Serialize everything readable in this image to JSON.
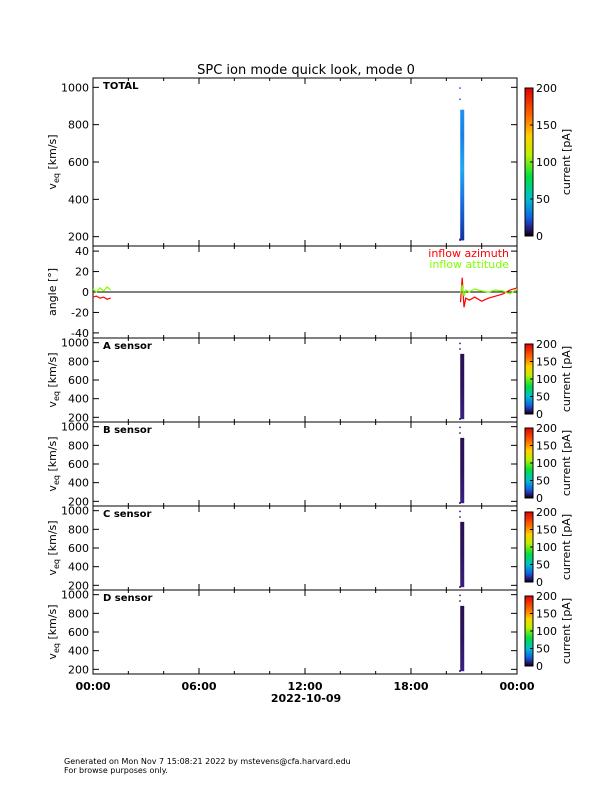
{
  "title": "SPC ion mode quick look, mode 0",
  "x_date": "2022-10-09",
  "x_ticks": [
    "00:00",
    "06:00",
    "12:00",
    "18:00",
    "00:00"
  ],
  "footer": {
    "line1": "Generated on Mon Nov  7 15:08:21 2022 by mstevens@cfa.harvard.edu",
    "line2": "For browse purposes only."
  },
  "vel_ylabel": "v",
  "vel_ylabel_sub": "eq",
  "vel_ylabel_unit": " [km/s]",
  "angle_ylabel": "angle [°]",
  "colorbar_label": "current [pA]",
  "legend": {
    "azimuth": "inflow azimuth",
    "attitude": "inflow attitude"
  },
  "colors": {
    "azimuth": "#ff0000",
    "attitude": "#80ff00"
  },
  "chart_data": [
    {
      "type": "heatmap",
      "panel": "TOTAL",
      "xlim_hours": [
        0,
        24
      ],
      "ylim": [
        150,
        1050
      ],
      "yticks": [
        200,
        400,
        600,
        800,
        1000
      ],
      "colorbar": {
        "range": [
          0,
          200
        ],
        "ticks": [
          0,
          50,
          100,
          150,
          200
        ],
        "colormap": "rainbow"
      },
      "data_column": {
        "x_hours": 20.9,
        "y_range": [
          180,
          880
        ],
        "current_pA": [
          20,
          25
        ]
      }
    },
    {
      "type": "line",
      "panel": "angle",
      "xlim_hours": [
        0,
        24
      ],
      "ylim": [
        -45,
        45
      ],
      "yticks": [
        -40,
        -20,
        0,
        20,
        40
      ],
      "series": [
        {
          "name": "inflow azimuth",
          "color": "#ff0000",
          "x": [
            0.0,
            0.2,
            0.4,
            0.6,
            0.8,
            1.0,
            20.8,
            20.9,
            21.0,
            21.1,
            21.3,
            21.6,
            22.0,
            22.4,
            22.8,
            23.2,
            23.6,
            24.0
          ],
          "y": [
            -5,
            -4,
            -6,
            -5,
            -7,
            -6,
            -10,
            14,
            -15,
            -6,
            -8,
            -5,
            -9,
            -6,
            -4,
            -2,
            2,
            4
          ]
        },
        {
          "name": "inflow attitude",
          "color": "#80ff00",
          "x": [
            0.0,
            0.2,
            0.4,
            0.6,
            0.8,
            1.0,
            20.8,
            20.9,
            21.0,
            21.1,
            21.3,
            21.6,
            22.0,
            22.4,
            22.8,
            23.2,
            23.6,
            24.0
          ],
          "y": [
            3,
            0,
            4,
            1,
            5,
            2,
            -2,
            7,
            -4,
            2,
            0,
            3,
            1,
            0,
            2,
            1,
            -2,
            3
          ]
        }
      ]
    },
    {
      "type": "heatmap",
      "panel": "A sensor",
      "xlim_hours": [
        0,
        24
      ],
      "ylim": [
        150,
        1050
      ],
      "yticks": [
        200,
        400,
        600,
        800,
        1000
      ],
      "colorbar": {
        "range": [
          0,
          200
        ],
        "ticks": [
          0,
          50,
          100,
          150,
          200
        ],
        "colormap": "rainbow"
      },
      "data_column": {
        "x_hours": 20.9,
        "y_range": [
          180,
          880
        ],
        "current_pA": [
          3,
          8
        ]
      }
    },
    {
      "type": "heatmap",
      "panel": "B sensor",
      "xlim_hours": [
        0,
        24
      ],
      "ylim": [
        150,
        1050
      ],
      "yticks": [
        200,
        400,
        600,
        800,
        1000
      ],
      "colorbar": {
        "range": [
          0,
          200
        ],
        "ticks": [
          0,
          50,
          100,
          150,
          200
        ],
        "colormap": "rainbow"
      },
      "data_column": {
        "x_hours": 20.9,
        "y_range": [
          180,
          880
        ],
        "current_pA": [
          3,
          8
        ]
      }
    },
    {
      "type": "heatmap",
      "panel": "C sensor",
      "xlim_hours": [
        0,
        24
      ],
      "ylim": [
        150,
        1050
      ],
      "yticks": [
        200,
        400,
        600,
        800,
        1000
      ],
      "colorbar": {
        "range": [
          0,
          200
        ],
        "ticks": [
          0,
          50,
          100,
          150,
          200
        ],
        "colormap": "rainbow"
      },
      "data_column": {
        "x_hours": 20.9,
        "y_range": [
          180,
          880
        ],
        "current_pA": [
          3,
          8
        ]
      }
    },
    {
      "type": "heatmap",
      "panel": "D sensor",
      "xlim_hours": [
        0,
        24
      ],
      "ylim": [
        150,
        1050
      ],
      "yticks": [
        200,
        400,
        600,
        800,
        1000
      ],
      "colorbar": {
        "range": [
          0,
          200
        ],
        "ticks": [
          0,
          50,
          100,
          150,
          200
        ],
        "colormap": "rainbow"
      },
      "data_column": {
        "x_hours": 20.9,
        "y_range": [
          180,
          880
        ],
        "current_pA": [
          3,
          8
        ]
      }
    }
  ]
}
